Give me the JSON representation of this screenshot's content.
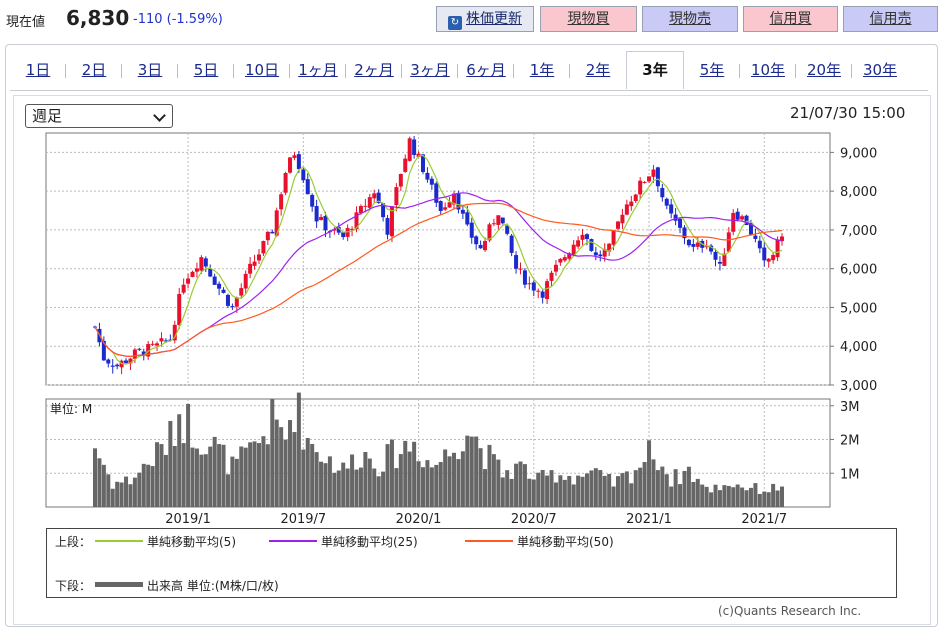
{
  "header": {
    "price_label": "現在値",
    "price": "6,830",
    "change": "-110 (-1.59%)",
    "refresh_label": "株価更新",
    "buy_label": "現物買",
    "sell_label": "現物売",
    "margin_buy_label": "信用買",
    "margin_sell_label": "信用売"
  },
  "tabs": [
    "1日",
    "2日",
    "3日",
    "5日",
    "10日",
    "1ヶ月",
    "2ヶ月",
    "3ヶ月",
    "6ヶ月",
    "1年",
    "2年",
    "3年",
    "5年",
    "10年",
    "20年",
    "30年"
  ],
  "active_tab": "3年",
  "period_select": "週足",
  "timestamp": "21/07/30 15:00",
  "colors": {
    "up": "#e8112d",
    "down": "#1a2acc",
    "ma5": "#9acd32",
    "ma25": "#a020f0",
    "ma50": "#ff5a1f",
    "volume": "#666666"
  },
  "legend": {
    "upper_label": "上段：",
    "lower_label": "下段：",
    "ma5": "単純移動平均(5)",
    "ma25": "単純移動平均(25)",
    "ma50": "単純移動平均(50)",
    "volume": "出来高 単位:(M株/口/枚)"
  },
  "credit": "(c)Quants Research Inc.",
  "chart_data": {
    "type": "candlestick",
    "price_ylim": [
      3000,
      9500
    ],
    "price_ticks": [
      "9,000",
      "8,000",
      "7,000",
      "6,000",
      "5,000",
      "4,000",
      "3,000"
    ],
    "price_tick_values": [
      9000,
      8000,
      7000,
      6000,
      5000,
      4000,
      3000
    ],
    "volume_unit_label": "単位: M",
    "volume_ylim": [
      0,
      3.2
    ],
    "volume_ticks": [
      "3M",
      "2M",
      "1M"
    ],
    "volume_tick_values": [
      3,
      2,
      1
    ],
    "x_range": [
      "2018-08-10",
      "2021-07-30"
    ],
    "x_tick_labels": [
      "2019/1",
      "2019/7",
      "2020/1",
      "2020/7",
      "2021/1",
      "2021/7"
    ],
    "x_tick_dates": [
      "2019-01-04",
      "2019-07-05",
      "2020-01-03",
      "2020-07-03",
      "2021-01-01",
      "2021-07-02"
    ],
    "price_keypoints": [
      [
        "2018-08-10",
        4500
      ],
      [
        "2018-08-24",
        3700
      ],
      [
        "2018-09-14",
        3500
      ],
      [
        "2018-10-12",
        3800
      ],
      [
        "2018-11-16",
        4000
      ],
      [
        "2018-12-07",
        4200
      ],
      [
        "2018-12-28",
        5700
      ],
      [
        "2019-01-25",
        6300
      ],
      [
        "2019-02-22",
        5500
      ],
      [
        "2019-03-15",
        5000
      ],
      [
        "2019-04-12",
        6000
      ],
      [
        "2019-05-17",
        7000
      ],
      [
        "2019-06-07",
        8500
      ],
      [
        "2019-06-21",
        9000
      ],
      [
        "2019-07-05",
        8400
      ],
      [
        "2019-07-26",
        7300
      ],
      [
        "2019-08-16",
        7000
      ],
      [
        "2019-09-06",
        6800
      ],
      [
        "2019-10-04",
        7500
      ],
      [
        "2019-10-25",
        8000
      ],
      [
        "2019-11-15",
        7000
      ],
      [
        "2019-12-06",
        8500
      ],
      [
        "2019-12-20",
        9300
      ],
      [
        "2020-01-10",
        8600
      ],
      [
        "2020-02-07",
        7500
      ],
      [
        "2020-02-28",
        8000
      ],
      [
        "2020-03-20",
        7000
      ],
      [
        "2020-04-10",
        6500
      ],
      [
        "2020-05-08",
        7500
      ],
      [
        "2020-06-05",
        6000
      ],
      [
        "2020-06-26",
        5600
      ],
      [
        "2020-07-17",
        5400
      ],
      [
        "2020-08-07",
        6000
      ],
      [
        "2020-08-28",
        6500
      ],
      [
        "2020-09-18",
        7000
      ],
      [
        "2020-10-09",
        6300
      ],
      [
        "2020-10-30",
        6500
      ],
      [
        "2020-11-20",
        7500
      ],
      [
        "2020-12-11",
        8000
      ],
      [
        "2021-01-08",
        8600
      ],
      [
        "2021-01-29",
        7500
      ],
      [
        "2021-02-19",
        7000
      ],
      [
        "2021-03-12",
        6500
      ],
      [
        "2021-04-02",
        6700
      ],
      [
        "2021-04-23",
        6000
      ],
      [
        "2021-05-14",
        7500
      ],
      [
        "2021-06-04",
        7200
      ],
      [
        "2021-06-18",
        6700
      ],
      [
        "2021-07-02",
        6100
      ],
      [
        "2021-07-16",
        6400
      ],
      [
        "2021-07-30",
        6830
      ]
    ],
    "volume_keypoints": [
      [
        "2018-08-10",
        1.8
      ],
      [
        "2018-09-07",
        0.7
      ],
      [
        "2018-10-05",
        0.8
      ],
      [
        "2018-11-02",
        1.3
      ],
      [
        "2018-12-07",
        2.0
      ],
      [
        "2018-12-21",
        2.8
      ],
      [
        "2019-01-18",
        2.2
      ],
      [
        "2019-02-15",
        1.8
      ],
      [
        "2019-03-15",
        1.2
      ],
      [
        "2019-04-12",
        1.6
      ],
      [
        "2019-05-17",
        2.5
      ],
      [
        "2019-06-07",
        2.1
      ],
      [
        "2019-06-21",
        3.1
      ],
      [
        "2019-07-12",
        2.0
      ],
      [
        "2019-08-09",
        1.5
      ],
      [
        "2019-09-06",
        1.1
      ],
      [
        "2019-10-04",
        1.6
      ],
      [
        "2019-11-01",
        1.3
      ],
      [
        "2019-12-06",
        1.7
      ],
      [
        "2019-12-27",
        1.9
      ],
      [
        "2020-01-24",
        1.2
      ],
      [
        "2020-02-21",
        1.6
      ],
      [
        "2020-03-20",
        2.4
      ],
      [
        "2020-04-17",
        1.6
      ],
      [
        "2020-05-15",
        1.0
      ],
      [
        "2020-06-12",
        1.2
      ],
      [
        "2020-07-10",
        0.8
      ],
      [
        "2020-08-07",
        1.0
      ],
      [
        "2020-09-04",
        0.9
      ],
      [
        "2020-10-02",
        1.0
      ],
      [
        "2020-11-06",
        0.7
      ],
      [
        "2020-12-04",
        1.0
      ],
      [
        "2021-01-08",
        1.7
      ],
      [
        "2021-02-05",
        0.8
      ],
      [
        "2021-03-05",
        1.1
      ],
      [
        "2021-04-02",
        0.5
      ],
      [
        "2021-05-07",
        0.7
      ],
      [
        "2021-06-04",
        0.6
      ],
      [
        "2021-07-02",
        0.5
      ],
      [
        "2021-07-30",
        0.6
      ]
    ],
    "series": [
      {
        "name": "単純移動平均(5)",
        "window": 5
      },
      {
        "name": "単純移動平均(25)",
        "window": 25
      },
      {
        "name": "単純移動平均(50)",
        "window": 50
      }
    ]
  }
}
